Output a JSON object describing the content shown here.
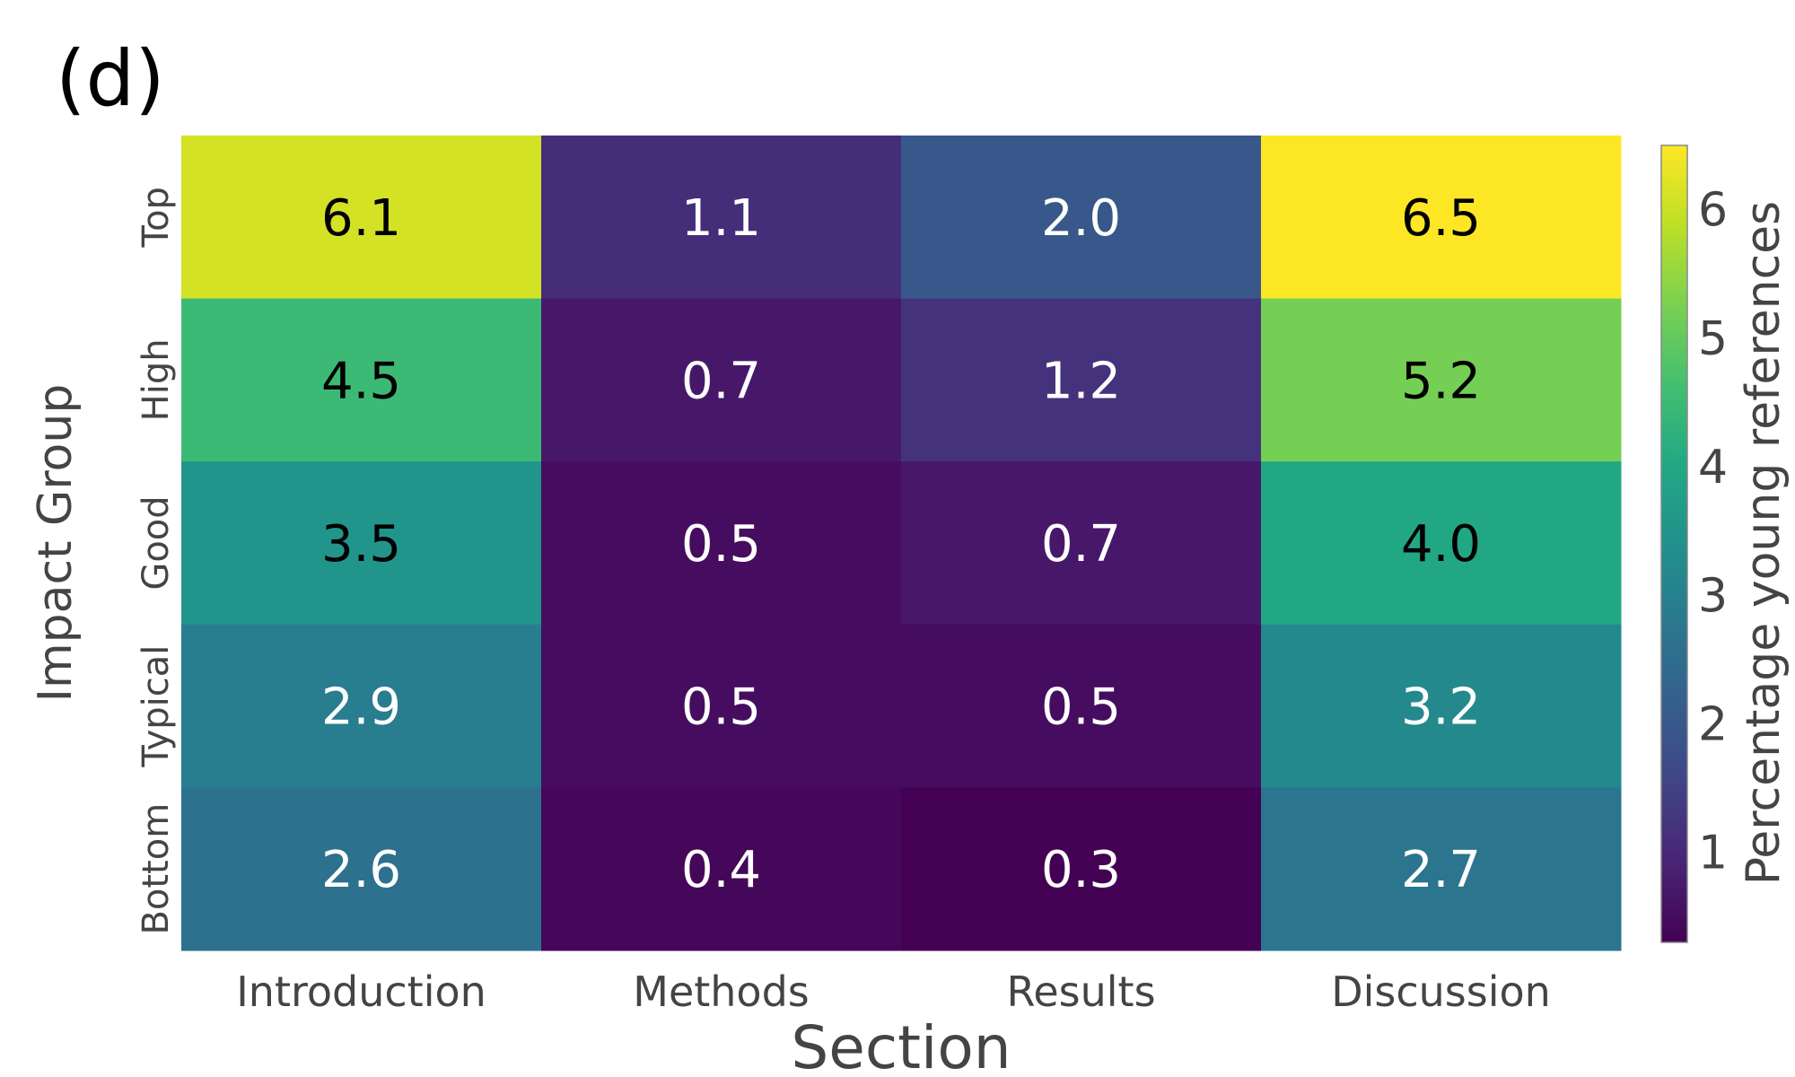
{
  "panel_label": "(d)",
  "chart_data": {
    "type": "heatmap",
    "title": "",
    "xlabel": "Section",
    "ylabel": "Impact Group",
    "colorbar_label": "Percentage young references",
    "x_categories": [
      "Introduction",
      "Methods",
      "Results",
      "Discussion"
    ],
    "y_categories": [
      "Top",
      "High",
      "Good",
      "Typical",
      "Bottom"
    ],
    "values": [
      [
        6.1,
        1.1,
        2.0,
        6.5
      ],
      [
        4.5,
        0.7,
        1.2,
        5.2
      ],
      [
        3.5,
        0.5,
        0.7,
        4.0
      ],
      [
        2.9,
        0.5,
        0.5,
        3.2
      ],
      [
        2.6,
        0.4,
        0.3,
        2.7
      ]
    ],
    "cell_labels": [
      [
        "6.1",
        "1.1",
        "2.0",
        "6.5"
      ],
      [
        "4.5",
        "0.7",
        "1.2",
        "5.2"
      ],
      [
        "3.5",
        "0.5",
        "0.7",
        "4.0"
      ],
      [
        "2.9",
        "0.5",
        "0.5",
        "3.2"
      ],
      [
        "2.6",
        "0.4",
        "0.3",
        "2.7"
      ]
    ],
    "colorscale": "viridis",
    "color_range": [
      0.3,
      6.5
    ],
    "colorbar_ticks": [
      1,
      2,
      3,
      4,
      5,
      6
    ],
    "colorbar_tick_labels": [
      "1",
      "2",
      "3",
      "4",
      "5",
      "6"
    ]
  }
}
